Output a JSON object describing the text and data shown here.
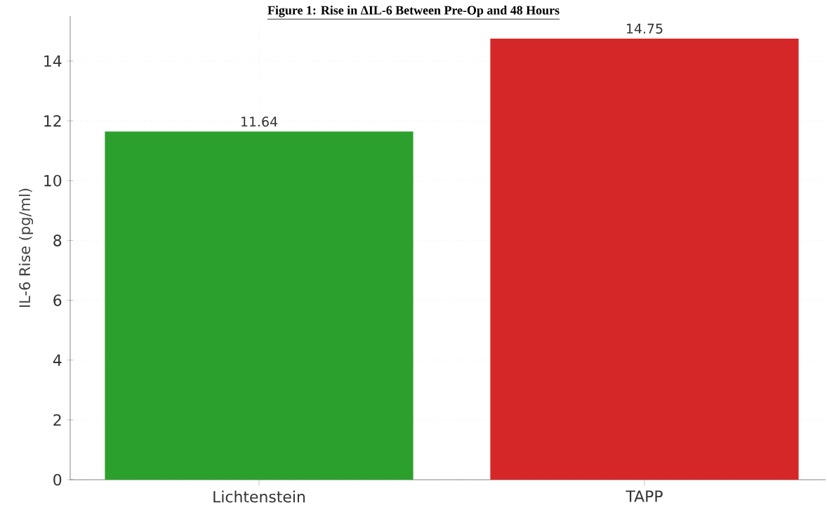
{
  "chart_data": {
    "type": "bar",
    "title": "Figure 1: Rise in ΔIL-6 Between Pre-Op and 48 Hours",
    "ylabel": "IL-6 Rise (pg/ml)",
    "categories": [
      "Lichtenstein",
      "TAPP"
    ],
    "values": [
      11.64,
      14.75
    ],
    "colors": [
      "#2ca02c",
      "#d62728"
    ],
    "ylim": [
      0,
      15.5
    ],
    "yticks": [
      0,
      2,
      4,
      6,
      8,
      10,
      12,
      14
    ],
    "grid": true,
    "data_labels": true
  }
}
